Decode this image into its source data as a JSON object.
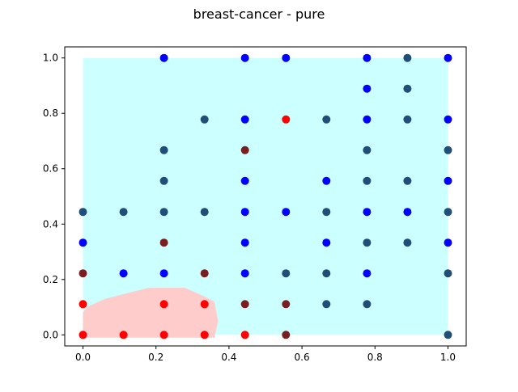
{
  "chart_data": {
    "type": "scatter",
    "title": "breast-cancer - pure",
    "xlabel": "",
    "ylabel": "",
    "xlim": [
      -0.05,
      1.05
    ],
    "ylim": [
      -0.04,
      1.04
    ],
    "xticks": [
      "0.0",
      "0.2",
      "0.4",
      "0.6",
      "0.8",
      "1.0"
    ],
    "yticks": [
      "0.0",
      "0.2",
      "0.4",
      "0.6",
      "0.8",
      "1.0"
    ],
    "grid": false,
    "background_regions": [
      {
        "label": "class-0 region",
        "color": "#ccffff",
        "polygon": [
          [
            0.0,
            0.0
          ],
          [
            1.0,
            0.0
          ],
          [
            1.0,
            1.0
          ],
          [
            0.0,
            1.0
          ]
        ]
      },
      {
        "label": "class-1 region",
        "color": "#ffcccc",
        "polygon": [
          [
            0.0,
            -0.01
          ],
          [
            0.36,
            -0.01
          ],
          [
            0.37,
            0.05
          ],
          [
            0.36,
            0.12
          ],
          [
            0.33,
            0.14
          ],
          [
            0.28,
            0.17
          ],
          [
            0.18,
            0.17
          ],
          [
            0.12,
            0.15
          ],
          [
            0.06,
            0.13
          ],
          [
            0.01,
            0.1
          ],
          [
            0.0,
            0.08
          ]
        ]
      }
    ],
    "series": [
      {
        "color": "#1f4e79",
        "points": [
          [
            0.0,
            0.444
          ],
          [
            0.111,
            0.444
          ],
          [
            0.222,
            0.444
          ],
          [
            0.333,
            0.444
          ],
          [
            0.222,
            0.556
          ],
          [
            0.222,
            0.667
          ],
          [
            0.333,
            0.778
          ],
          [
            0.556,
            0.222
          ],
          [
            0.667,
            0.111
          ],
          [
            0.667,
            0.222
          ],
          [
            0.667,
            0.444
          ],
          [
            0.667,
            0.778
          ],
          [
            0.778,
            0.111
          ],
          [
            0.778,
            0.333
          ],
          [
            0.778,
            0.556
          ],
          [
            0.778,
            0.667
          ],
          [
            0.889,
            0.333
          ],
          [
            0.889,
            0.556
          ],
          [
            0.889,
            0.778
          ],
          [
            0.889,
            0.889
          ],
          [
            0.889,
            1.0
          ],
          [
            1.0,
            0.0
          ],
          [
            1.0,
            0.222
          ],
          [
            1.0,
            0.444
          ],
          [
            1.0,
            0.667
          ]
        ]
      },
      {
        "color": "#0000ff",
        "points": [
          [
            0.0,
            0.333
          ],
          [
            0.111,
            0.222
          ],
          [
            0.222,
            0.222
          ],
          [
            0.222,
            1.0
          ],
          [
            0.444,
            0.222
          ],
          [
            0.444,
            0.333
          ],
          [
            0.444,
            0.444
          ],
          [
            0.444,
            0.556
          ],
          [
            0.444,
            0.778
          ],
          [
            0.444,
            1.0
          ],
          [
            0.556,
            0.444
          ],
          [
            0.556,
            1.0
          ],
          [
            0.667,
            0.333
          ],
          [
            0.667,
            0.556
          ],
          [
            0.778,
            0.222
          ],
          [
            0.778,
            0.444
          ],
          [
            0.778,
            0.778
          ],
          [
            0.778,
            0.889
          ],
          [
            0.778,
            1.0
          ],
          [
            0.889,
            0.444
          ],
          [
            1.0,
            0.333
          ],
          [
            1.0,
            0.556
          ],
          [
            1.0,
            0.778
          ],
          [
            1.0,
            1.0
          ]
        ]
      },
      {
        "color": "#7a1f1f",
        "points": [
          [
            0.0,
            0.222
          ],
          [
            0.222,
            0.333
          ],
          [
            0.333,
            0.222
          ],
          [
            0.444,
            0.111
          ],
          [
            0.444,
            0.667
          ],
          [
            0.556,
            0.111
          ],
          [
            0.556,
            0.0
          ]
        ]
      },
      {
        "color": "#ff0000",
        "points": [
          [
            0.0,
            0.0
          ],
          [
            0.0,
            0.111
          ],
          [
            0.111,
            0.0
          ],
          [
            0.222,
            0.0
          ],
          [
            0.222,
            0.111
          ],
          [
            0.333,
            0.0
          ],
          [
            0.333,
            0.111
          ],
          [
            0.444,
            0.0
          ],
          [
            0.556,
            0.778
          ]
        ]
      }
    ]
  }
}
